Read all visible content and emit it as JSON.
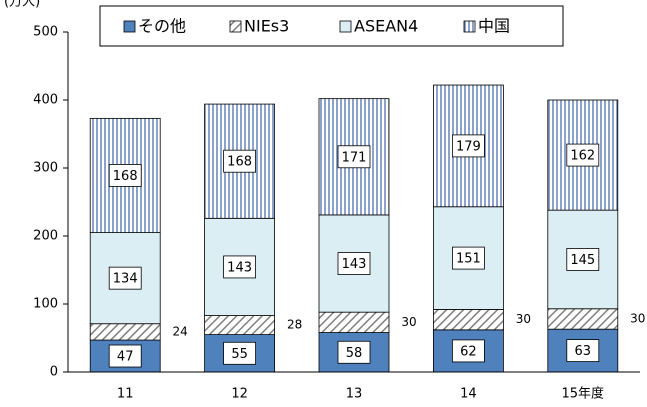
{
  "chart_data": {
    "type": "stacked_bar",
    "y_label": "(万人)",
    "categories": [
      "11",
      "12",
      "13",
      "14",
      "15年度"
    ],
    "series": [
      {
        "name": "その他",
        "color": "#4f81bd",
        "values": [
          47,
          55,
          58,
          62,
          63
        ]
      },
      {
        "name": "NIEs3",
        "color": "#7f7f7f",
        "values": [
          24,
          28,
          30,
          30,
          30
        ]
      },
      {
        "name": "ASEAN4",
        "color": "#dbeef4",
        "values": [
          134,
          143,
          143,
          151,
          145
        ]
      },
      {
        "name": "中国",
        "color": "#5a7bb0",
        "values": [
          168,
          168,
          171,
          179,
          162
        ]
      }
    ],
    "ylim": [
      0,
      500
    ],
    "yticks": [
      0,
      100,
      200,
      300,
      400,
      500
    ],
    "grid": false,
    "legend": "top"
  }
}
